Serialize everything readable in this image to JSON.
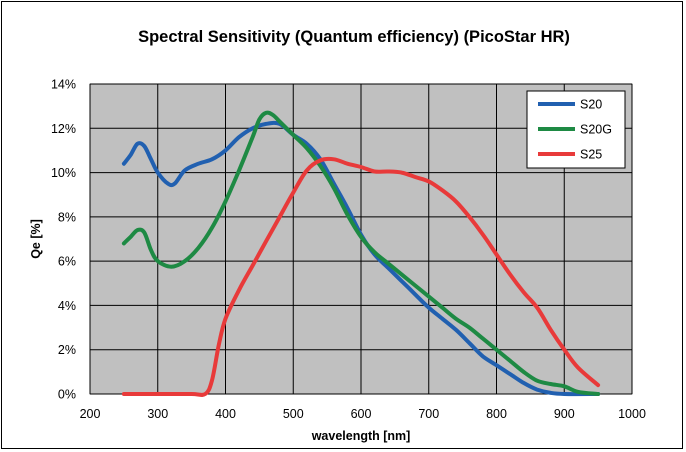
{
  "chart_data": {
    "type": "line",
    "title": "Spectral Sensitivity (Quantum efficiency) (PicoStar HR)",
    "xlabel": "wavelength [nm]",
    "ylabel": "Qe [%]",
    "xlim": [
      200,
      1000
    ],
    "ylim": [
      0,
      14
    ],
    "xticks": [
      200,
      300,
      400,
      500,
      600,
      700,
      800,
      900,
      1000
    ],
    "yticks": [
      0,
      2,
      4,
      6,
      8,
      10,
      12,
      14
    ],
    "xtick_labels": [
      "200",
      "300",
      "400",
      "500",
      "600",
      "700",
      "800",
      "900",
      "1000"
    ],
    "ytick_labels": [
      "0%",
      "2%",
      "4%",
      "6%",
      "8%",
      "10%",
      "12%",
      "14%"
    ],
    "grid": true,
    "legend_position": "top-right",
    "series": [
      {
        "name": "S20",
        "color": "#2160b0",
        "points": [
          [
            250,
            10.4
          ],
          [
            260,
            10.8
          ],
          [
            270,
            11.3
          ],
          [
            280,
            11.2
          ],
          [
            290,
            10.6
          ],
          [
            300,
            10.0
          ],
          [
            315,
            9.5
          ],
          [
            325,
            9.5
          ],
          [
            340,
            10.1
          ],
          [
            360,
            10.4
          ],
          [
            380,
            10.6
          ],
          [
            400,
            11.0
          ],
          [
            420,
            11.6
          ],
          [
            440,
            12.0
          ],
          [
            460,
            12.2
          ],
          [
            480,
            12.2
          ],
          [
            500,
            11.7
          ],
          [
            520,
            11.3
          ],
          [
            540,
            10.6
          ],
          [
            560,
            9.5
          ],
          [
            580,
            8.4
          ],
          [
            600,
            7.2
          ],
          [
            620,
            6.3
          ],
          [
            640,
            5.7
          ],
          [
            660,
            5.1
          ],
          [
            680,
            4.5
          ],
          [
            700,
            3.9
          ],
          [
            720,
            3.4
          ],
          [
            740,
            2.9
          ],
          [
            760,
            2.3
          ],
          [
            780,
            1.7
          ],
          [
            800,
            1.3
          ],
          [
            820,
            0.9
          ],
          [
            840,
            0.5
          ],
          [
            860,
            0.2
          ],
          [
            880,
            0.05
          ],
          [
            900,
            0.0
          ],
          [
            950,
            0.0
          ]
        ]
      },
      {
        "name": "S20G",
        "color": "#1e8a44",
        "points": [
          [
            250,
            6.8
          ],
          [
            260,
            7.1
          ],
          [
            270,
            7.4
          ],
          [
            280,
            7.3
          ],
          [
            290,
            6.5
          ],
          [
            300,
            6.0
          ],
          [
            320,
            5.75
          ],
          [
            340,
            6.0
          ],
          [
            360,
            6.6
          ],
          [
            380,
            7.5
          ],
          [
            400,
            8.7
          ],
          [
            420,
            10.1
          ],
          [
            440,
            11.6
          ],
          [
            450,
            12.4
          ],
          [
            460,
            12.7
          ],
          [
            470,
            12.6
          ],
          [
            480,
            12.3
          ],
          [
            500,
            11.7
          ],
          [
            520,
            11.1
          ],
          [
            540,
            10.3
          ],
          [
            560,
            9.3
          ],
          [
            580,
            8.1
          ],
          [
            600,
            7.1
          ],
          [
            620,
            6.4
          ],
          [
            640,
            5.9
          ],
          [
            660,
            5.4
          ],
          [
            680,
            4.9
          ],
          [
            700,
            4.4
          ],
          [
            720,
            3.9
          ],
          [
            740,
            3.4
          ],
          [
            760,
            3.0
          ],
          [
            780,
            2.5
          ],
          [
            800,
            2.0
          ],
          [
            820,
            1.5
          ],
          [
            840,
            1.0
          ],
          [
            860,
            0.6
          ],
          [
            880,
            0.45
          ],
          [
            900,
            0.35
          ],
          [
            920,
            0.1
          ],
          [
            950,
            0.0
          ]
        ]
      },
      {
        "name": "S25",
        "color": "#e83a3a",
        "points": [
          [
            250,
            0.0
          ],
          [
            300,
            0.0
          ],
          [
            350,
            0.0
          ],
          [
            370,
            0.0
          ],
          [
            380,
            0.6
          ],
          [
            390,
            2.2
          ],
          [
            400,
            3.4
          ],
          [
            420,
            4.7
          ],
          [
            440,
            5.8
          ],
          [
            460,
            6.9
          ],
          [
            480,
            8.0
          ],
          [
            500,
            9.1
          ],
          [
            520,
            10.1
          ],
          [
            540,
            10.55
          ],
          [
            560,
            10.6
          ],
          [
            580,
            10.4
          ],
          [
            600,
            10.25
          ],
          [
            620,
            10.05
          ],
          [
            640,
            10.05
          ],
          [
            660,
            10.0
          ],
          [
            680,
            9.8
          ],
          [
            700,
            9.6
          ],
          [
            720,
            9.2
          ],
          [
            740,
            8.7
          ],
          [
            760,
            8.0
          ],
          [
            780,
            7.2
          ],
          [
            800,
            6.3
          ],
          [
            820,
            5.4
          ],
          [
            840,
            4.6
          ],
          [
            860,
            3.9
          ],
          [
            880,
            2.9
          ],
          [
            900,
            2.0
          ],
          [
            920,
            1.2
          ],
          [
            950,
            0.4
          ]
        ]
      }
    ]
  }
}
